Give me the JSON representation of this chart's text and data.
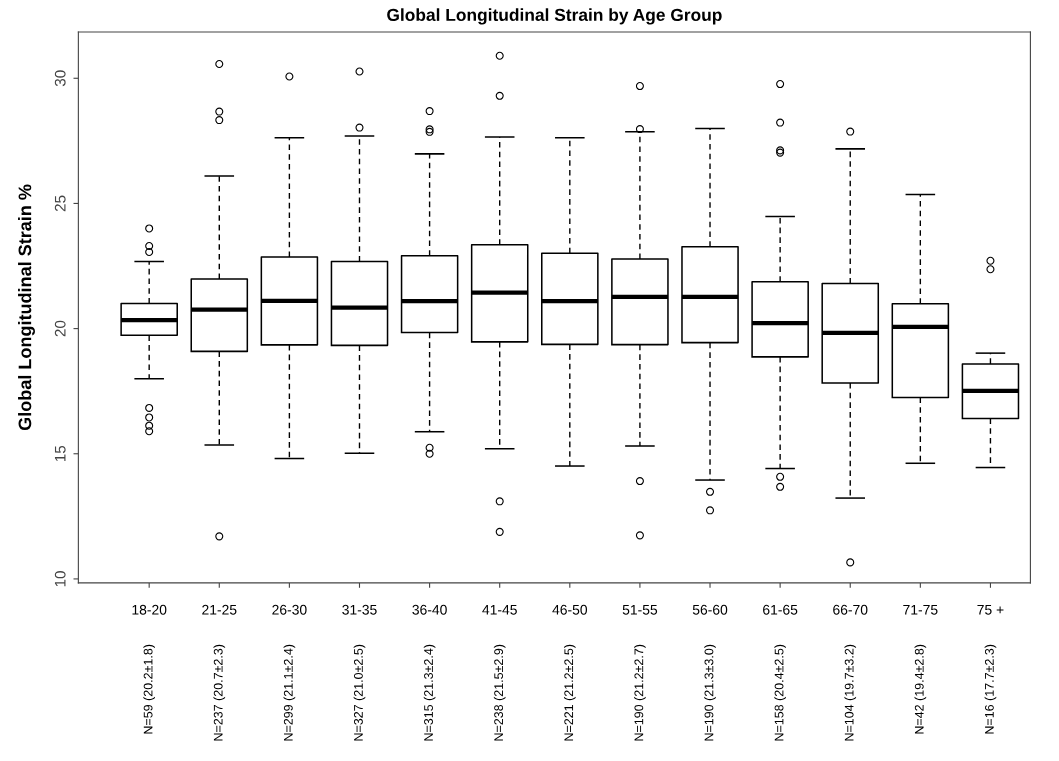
{
  "chart_data": {
    "type": "box",
    "title": "Global Longitudinal Strain by Age Group",
    "ylabel": "Global Longitudinal Strain %",
    "categories": [
      "18-20",
      "21-25",
      "26-30",
      "31-35",
      "36-40",
      "41-45",
      "46-50",
      "51-55",
      "56-60",
      "61-65",
      "66-70",
      "71-75",
      "75 +"
    ],
    "boxes": [
      {
        "low": 18.0,
        "q1": 19.73,
        "median": 20.34,
        "q3": 21.0,
        "high": 22.68,
        "outliers": [
          24.0,
          23.3,
          23.06,
          16.83,
          16.45,
          16.12,
          15.9
        ]
      },
      {
        "low": 15.35,
        "q1": 19.09,
        "median": 20.76,
        "q3": 21.98,
        "high": 26.1,
        "outliers": [
          30.57,
          28.67,
          28.33,
          11.7
        ]
      },
      {
        "low": 14.81,
        "q1": 19.35,
        "median": 21.11,
        "q3": 22.86,
        "high": 27.62,
        "outliers": [
          30.07
        ]
      },
      {
        "low": 15.02,
        "q1": 19.33,
        "median": 20.84,
        "q3": 22.68,
        "high": 27.69,
        "outliers": [
          30.27,
          28.03
        ]
      },
      {
        "low": 15.88,
        "q1": 19.84,
        "median": 21.1,
        "q3": 22.91,
        "high": 26.98,
        "outliers": [
          28.69,
          27.96,
          27.86,
          15.24,
          15.0
        ]
      },
      {
        "low": 15.2,
        "q1": 19.47,
        "median": 21.44,
        "q3": 23.35,
        "high": 27.65,
        "outliers": [
          30.9,
          29.3,
          13.1,
          11.88
        ]
      },
      {
        "low": 14.51,
        "q1": 19.37,
        "median": 21.1,
        "q3": 23.01,
        "high": 27.62
      },
      {
        "low": 15.31,
        "q1": 19.36,
        "median": 21.27,
        "q3": 22.78,
        "high": 27.86,
        "outliers": [
          29.69,
          27.97,
          13.91,
          11.74
        ]
      },
      {
        "low": 13.95,
        "q1": 19.44,
        "median": 21.27,
        "q3": 23.27,
        "high": 27.99,
        "outliers": [
          13.48,
          12.74
        ]
      },
      {
        "low": 14.41,
        "q1": 18.87,
        "median": 20.22,
        "q3": 21.87,
        "high": 24.48,
        "outliers": [
          29.77,
          28.23,
          27.12,
          27.03,
          14.08,
          13.68
        ]
      },
      {
        "low": 13.23,
        "q1": 17.83,
        "median": 19.83,
        "q3": 21.8,
        "high": 27.18,
        "outliers": [
          27.87,
          10.66
        ]
      },
      {
        "low": 14.62,
        "q1": 17.25,
        "median": 20.07,
        "q3": 20.99,
        "high": 25.36
      },
      {
        "low": 14.45,
        "q1": 16.41,
        "median": 17.51,
        "q3": 18.59,
        "high": 19.02,
        "outliers": [
          22.71,
          22.37
        ]
      }
    ],
    "annotations": [
      "N=59 (20.2±1.8)",
      "N=237 (20.7±2.3)",
      "N=299 (21.1±2.4)",
      "N=327 (21.0±2.5)",
      "N=315 (21.3±2.4)",
      "N=238 (21.5±2.9)",
      "N=221 (21.2±2.5)",
      "N=190 (21.2±2.7)",
      "N=190 (21.3±3.0)",
      "N=158 (20.4±2.5)",
      "N=104 (19.7±3.2)",
      "N=42 (19.4±2.8)",
      "N=16 (17.7±2.3)"
    ],
    "ylim": [
      9.84,
      31.85
    ],
    "yticks": [
      10,
      15,
      20,
      25,
      30
    ],
    "grid": false,
    "legend": false
  }
}
